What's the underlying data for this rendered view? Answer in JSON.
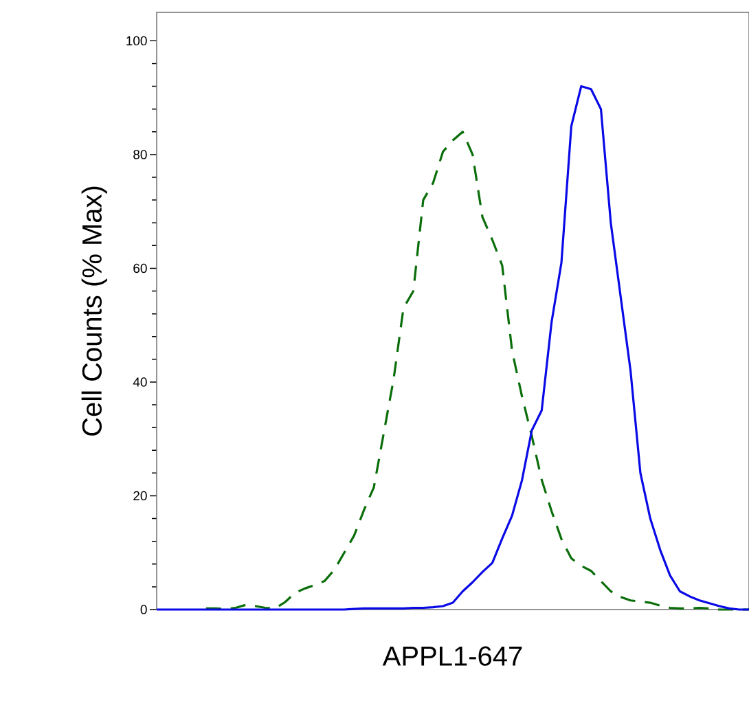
{
  "chart_data": {
    "type": "line",
    "xlabel": "APPL1-647",
    "ylabel": "Cell Counts (% Max)",
    "categories": [
      null,
      null,
      null,
      null,
      null,
      null,
      null,
      null,
      null,
      null,
      null,
      null,
      null,
      null,
      null,
      null,
      null,
      null,
      null,
      null,
      null,
      null,
      null,
      null,
      null,
      null,
      null,
      null,
      null,
      null,
      null,
      null,
      null,
      null,
      null,
      null,
      null,
      null,
      null,
      null,
      null,
      null,
      null,
      null,
      null,
      null,
      null,
      null,
      null,
      null,
      null,
      null,
      null,
      null,
      null,
      null,
      null,
      null,
      null,
      null,
      null
    ],
    "series": [
      {
        "color": "#0a6e0a",
        "line_style": "dashed",
        "values": [
          null,
          null,
          null,
          null,
          null,
          0.2,
          0.2,
          0.1,
          0.3,
          0.8,
          0.6,
          0.3,
          0.2,
          1.3,
          2.9,
          3.7,
          4.3,
          5,
          7,
          10,
          13,
          17.5,
          21.5,
          31,
          40.5,
          53,
          56,
          72,
          75,
          80.5,
          82.5,
          84,
          80,
          69,
          65,
          60.5,
          45.5,
          37.5,
          30.5,
          22.8,
          17.3,
          12.4,
          9,
          7.7,
          6.8,
          5,
          3.2,
          2.2,
          1.6,
          1.4,
          1.2,
          0.7,
          0.3,
          0.2,
          0.2,
          0.3,
          0.2,
          0,
          0,
          0,
          0
        ]
      },
      {
        "color": "#0a0ae6",
        "line_style": "solid",
        "values": [
          0,
          0,
          0,
          0,
          0,
          0,
          0,
          0,
          0,
          0,
          0,
          0,
          0,
          0,
          0,
          0,
          0,
          0,
          0,
          0,
          0.1,
          0.2,
          0.2,
          0.2,
          0.2,
          0.2,
          0.3,
          0.3,
          0.4,
          0.6,
          1.2,
          3.2,
          4.8,
          6.6,
          8.2,
          12.5,
          16.5,
          22.7,
          31.5,
          35,
          50.5,
          61,
          85,
          92,
          91.5,
          88,
          68,
          55,
          42,
          24,
          16,
          10.5,
          6,
          3.2,
          2.3,
          1.6,
          1.1,
          0.6,
          0.2,
          0,
          0
        ]
      }
    ],
    "ylim": [
      0,
      105
    ],
    "yticks": [
      0,
      20,
      40,
      60,
      80,
      100
    ],
    "tick_labels": "y",
    "marker": "none"
  }
}
